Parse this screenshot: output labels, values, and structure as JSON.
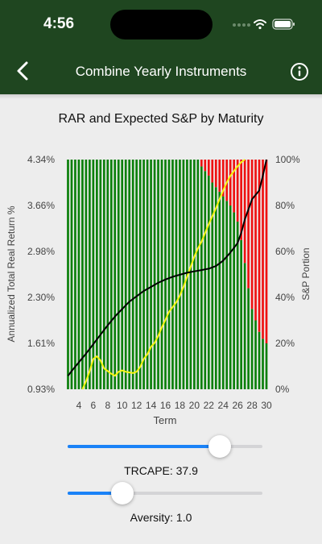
{
  "status_bar": {
    "time": "4:56"
  },
  "nav": {
    "title": "Combine Yearly Instruments"
  },
  "colors": {
    "nav_background": "#1f4620",
    "green_bar": "#0a7f0a",
    "red_bar": "#ee1111",
    "expected_sp_line": "#f5f510",
    "rar_line": "#000000",
    "slider_fill": "#1a82f7"
  },
  "chart_data": {
    "type": "bar",
    "title": "RAR and Expected S&P by Maturity",
    "xlabel": "Term",
    "ylabel_left": "Annualized Total Real Return %",
    "ylabel_right": "S&P Portion",
    "x_range": [
      2,
      30
    ],
    "x_ticks": [
      "4",
      "6",
      "8",
      "10",
      "12",
      "14",
      "16",
      "18",
      "20",
      "22",
      "24",
      "26",
      "28",
      "30"
    ],
    "y_left_range": [
      0.93,
      4.34
    ],
    "y_left_ticks": [
      "4.34%",
      "3.66%",
      "2.98%",
      "2.30%",
      "1.61%",
      "0.93%"
    ],
    "y_right_range": [
      0,
      100
    ],
    "y_right_ticks": [
      "100%",
      "80%",
      "60%",
      "40%",
      "20%",
      "0%"
    ],
    "bars": {
      "description_free_note": "",
      "x": [
        2.5,
        3,
        3.5,
        4,
        4.5,
        5,
        5.5,
        6,
        6.5,
        7,
        7.5,
        8,
        8.5,
        9,
        9.5,
        10,
        10.5,
        11,
        11.5,
        12,
        12.5,
        13,
        13.5,
        14,
        14.5,
        15,
        15.5,
        16,
        16.5,
        17,
        17.5,
        18,
        18.5,
        19,
        19.5,
        20,
        20.5,
        21,
        21.5,
        22,
        22.5,
        23,
        23.5,
        24,
        24.5,
        25,
        25.5,
        26,
        26.5,
        27,
        27.5,
        28,
        28.5,
        29,
        29.5,
        30
      ],
      "sp_portion": [
        100,
        100,
        100,
        100,
        100,
        100,
        100,
        100,
        100,
        100,
        100,
        100,
        100,
        100,
        100,
        100,
        100,
        100,
        100,
        100,
        100,
        100,
        100,
        100,
        100,
        100,
        100,
        100,
        100,
        100,
        100,
        100,
        100,
        100,
        100,
        100,
        100,
        97,
        95,
        93,
        90,
        88,
        86,
        84,
        82,
        80,
        77,
        73,
        65,
        55,
        44,
        35,
        30,
        25,
        22,
        20
      ]
    },
    "series": [
      {
        "name": "",
        "color": "yellow",
        "x": [
          4.5,
          5,
          5.5,
          6,
          6.5,
          7,
          7.5,
          8,
          8.5,
          9,
          9.5,
          10,
          10.5,
          11,
          11.5,
          12,
          12.5,
          13,
          13.5,
          14,
          14.5,
          15,
          15.5,
          16,
          16.5,
          17,
          17.5,
          18,
          18.5,
          19,
          19.5,
          20,
          20.5,
          21,
          21.5,
          22,
          22.5,
          23,
          23.5,
          24,
          24.5,
          25,
          25.5,
          26,
          26.5,
          27
        ],
        "values": [
          0.93,
          1.05,
          1.2,
          1.38,
          1.42,
          1.36,
          1.24,
          1.2,
          1.16,
          1.13,
          1.19,
          1.21,
          1.19,
          1.18,
          1.17,
          1.19,
          1.26,
          1.38,
          1.45,
          1.56,
          1.62,
          1.72,
          1.85,
          1.96,
          2.08,
          2.15,
          2.22,
          2.32,
          2.45,
          2.6,
          2.75,
          2.9,
          3.02,
          3.12,
          3.25,
          3.38,
          3.5,
          3.62,
          3.75,
          3.88,
          4.0,
          4.1,
          4.17,
          4.24,
          4.3,
          4.34
        ]
      },
      {
        "name": "",
        "color": "black",
        "x": [
          2.5,
          3,
          4,
          5,
          6,
          7,
          8,
          9,
          10,
          11,
          12,
          13,
          14,
          15,
          16,
          17,
          18,
          19,
          20,
          21,
          21.5,
          22,
          23,
          24,
          25,
          26,
          26.5,
          27,
          28,
          29,
          29.5,
          30
        ],
        "values": [
          1.13,
          1.2,
          1.33,
          1.46,
          1.6,
          1.74,
          1.88,
          2.01,
          2.12,
          2.23,
          2.31,
          2.39,
          2.45,
          2.51,
          2.56,
          2.6,
          2.63,
          2.66,
          2.68,
          2.7,
          2.71,
          2.72,
          2.76,
          2.84,
          2.96,
          3.1,
          3.25,
          3.45,
          3.75,
          3.88,
          4.1,
          4.34
        ]
      }
    ]
  },
  "sliders": {
    "trcape": {
      "label": "TRCAPE: 37.9",
      "fraction": 0.78
    },
    "aversity": {
      "label": "Aversity: 1.0",
      "fraction": 0.28
    }
  }
}
